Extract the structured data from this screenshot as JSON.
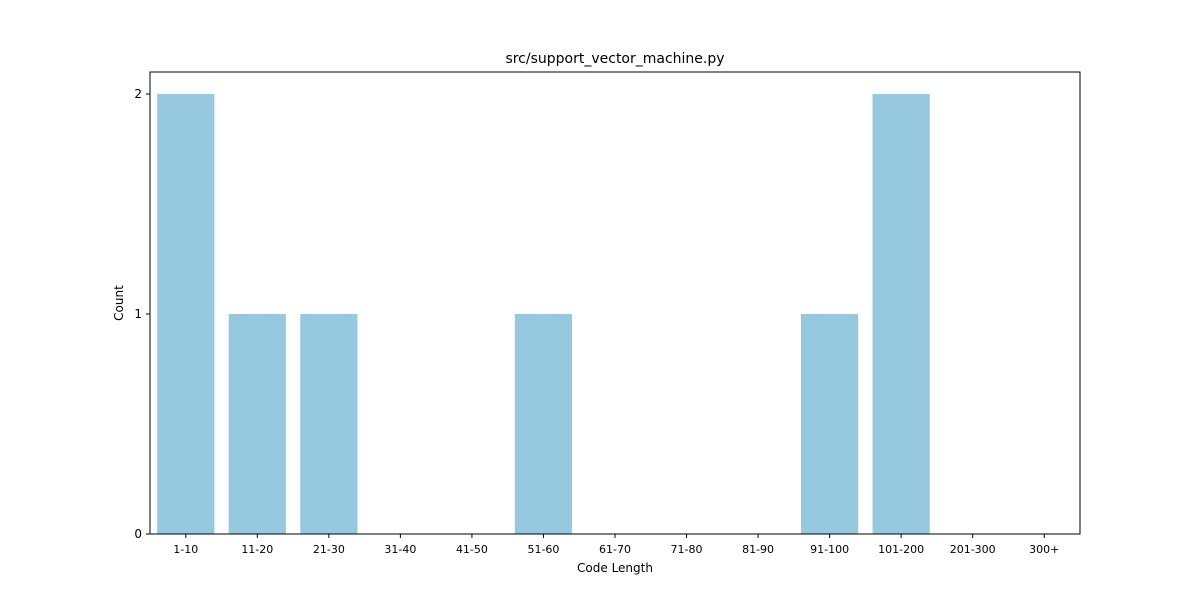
{
  "chart_data": {
    "type": "bar",
    "title": "src/support_vector_machine.py",
    "xlabel": "Code Length",
    "ylabel": "Count",
    "categories": [
      "1-10",
      "11-20",
      "21-30",
      "31-40",
      "41-50",
      "51-60",
      "61-70",
      "71-80",
      "81-90",
      "91-100",
      "101-200",
      "201-300",
      "300+"
    ],
    "values": [
      2,
      1,
      1,
      0,
      0,
      1,
      0,
      0,
      0,
      1,
      2,
      0,
      0
    ],
    "yticks": [
      "0",
      "1",
      "2"
    ],
    "ylim": [
      0,
      2.1
    ],
    "grid": false,
    "legend": "none",
    "bar_color": "#96C9DF"
  }
}
